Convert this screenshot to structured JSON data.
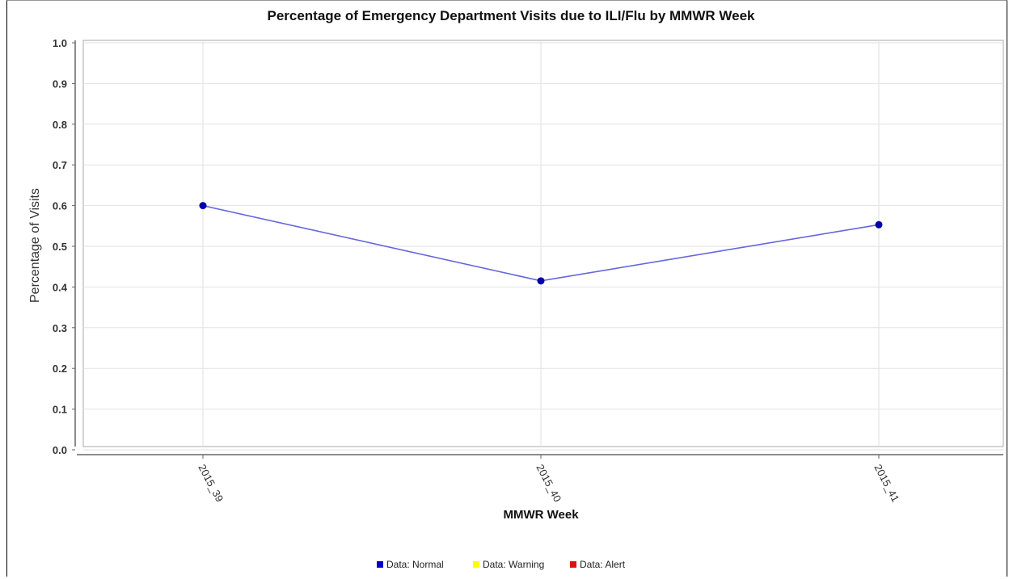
{
  "chart_data": {
    "type": "line",
    "title": "Percentage of Emergency Department Visits due to ILI/Flu by MMWR Week",
    "xlabel": "MMWR Week",
    "ylabel": "Percentage of Visits",
    "categories": [
      "2015_39",
      "2015_40",
      "2015_41"
    ],
    "series": [
      {
        "name": "Data: Normal",
        "values": [
          0.6,
          0.415,
          0.553
        ]
      }
    ],
    "ylim": [
      0.0,
      1.0
    ],
    "yticks": [
      "0.0",
      "0.1",
      "0.2",
      "0.3",
      "0.4",
      "0.5",
      "0.6",
      "0.7",
      "0.8",
      "0.9",
      "1.0"
    ],
    "grid": true,
    "legend_position": "bottom-center",
    "legend": [
      {
        "label": "Data: Normal",
        "color": "#0000cc"
      },
      {
        "label": "Data: Warning",
        "color": "#ffff00"
      },
      {
        "label": "Data: Alert",
        "color": "#dd1111"
      }
    ],
    "colors": {
      "line": "#6666dd",
      "marker": "#0000aa",
      "grid": "#e2e2e2",
      "plot_border": "#aaaaaa"
    }
  }
}
